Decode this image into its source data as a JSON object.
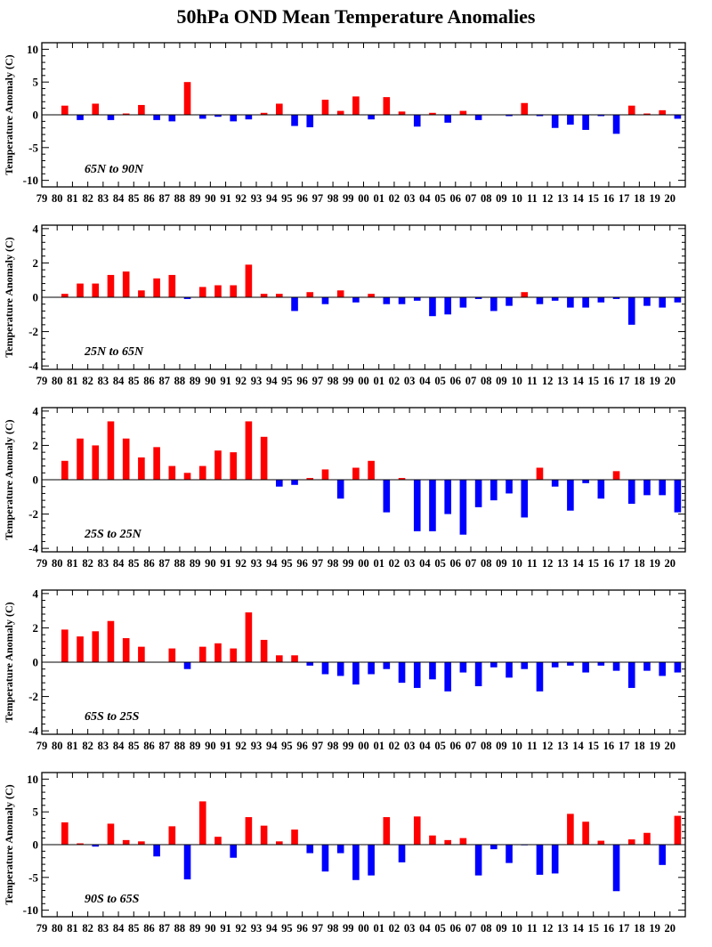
{
  "title": "50hPa OND Mean Temperature Anomalies",
  "colors": {
    "positive": "#ff0000",
    "negative": "#0000ff"
  },
  "chart_data": [
    {
      "type": "bar",
      "region": "65N to 90N",
      "ylabel": "Temperature Anomaly (C)",
      "ylim": [
        -11,
        11
      ],
      "yticks": [
        -10,
        -5,
        0,
        5,
        10
      ],
      "categories": [
        "79",
        "80",
        "81",
        "82",
        "83",
        "84",
        "85",
        "86",
        "87",
        "88",
        "89",
        "90",
        "91",
        "92",
        "93",
        "94",
        "95",
        "96",
        "97",
        "98",
        "99",
        "00",
        "01",
        "02",
        "03",
        "04",
        "05",
        "06",
        "07",
        "08",
        "09",
        "10",
        "11",
        "12",
        "13",
        "14",
        "15",
        "16",
        "17",
        "18",
        "19",
        "20"
      ],
      "values": [
        0,
        1.4,
        -0.8,
        1.7,
        -0.8,
        0.2,
        1.5,
        -0.8,
        -1.0,
        5.0,
        -0.6,
        -0.3,
        -1.0,
        -0.7,
        0.3,
        1.7,
        -1.7,
        -1.9,
        2.3,
        0.6,
        2.8,
        -0.7,
        2.7,
        0.5,
        -1.8,
        0.3,
        -1.2,
        0.6,
        -0.8,
        0,
        -0.2,
        1.8,
        -0.2,
        -2.0,
        -1.5,
        -2.3,
        -0.2,
        -2.9,
        1.4,
        0.2,
        0.7,
        -0.6
      ]
    },
    {
      "type": "bar",
      "region": "25N to 65N",
      "ylabel": "Temperature Anomaly (C)",
      "ylim": [
        -4.2,
        4.2
      ],
      "yticks": [
        -4,
        -2,
        0,
        2,
        4
      ],
      "categories": [
        "79",
        "80",
        "81",
        "82",
        "83",
        "84",
        "85",
        "86",
        "87",
        "88",
        "89",
        "90",
        "91",
        "92",
        "93",
        "94",
        "95",
        "96",
        "97",
        "98",
        "99",
        "00",
        "01",
        "02",
        "03",
        "04",
        "05",
        "06",
        "07",
        "08",
        "09",
        "10",
        "11",
        "12",
        "13",
        "14",
        "15",
        "16",
        "17",
        "18",
        "19",
        "20"
      ],
      "values": [
        0,
        0.2,
        0.8,
        0.8,
        1.3,
        1.5,
        0.4,
        1.1,
        1.3,
        -0.1,
        0.6,
        0.7,
        0.7,
        1.9,
        0.2,
        0.2,
        -0.8,
        0.3,
        -0.4,
        0.4,
        -0.3,
        0.2,
        -0.4,
        -0.4,
        -0.2,
        -1.1,
        -1.0,
        -0.6,
        -0.1,
        -0.8,
        -0.5,
        0.3,
        -0.4,
        -0.2,
        -0.6,
        -0.6,
        -0.3,
        -0.1,
        -1.6,
        -0.5,
        -0.6,
        -0.3
      ]
    },
    {
      "type": "bar",
      "region": "25S to 25N",
      "ylabel": "Temperature Anomaly (C)",
      "ylim": [
        -4.2,
        4.2
      ],
      "yticks": [
        -4,
        -2,
        0,
        2,
        4
      ],
      "categories": [
        "79",
        "80",
        "81",
        "82",
        "83",
        "84",
        "85",
        "86",
        "87",
        "88",
        "89",
        "90",
        "91",
        "92",
        "93",
        "94",
        "95",
        "96",
        "97",
        "98",
        "99",
        "00",
        "01",
        "02",
        "03",
        "04",
        "05",
        "06",
        "07",
        "08",
        "09",
        "10",
        "11",
        "12",
        "13",
        "14",
        "15",
        "16",
        "17",
        "18",
        "19",
        "20"
      ],
      "values": [
        0,
        1.1,
        2.4,
        2.0,
        3.4,
        2.4,
        1.3,
        1.9,
        0.8,
        0.4,
        0.8,
        1.7,
        1.6,
        3.4,
        2.5,
        -0.4,
        -0.3,
        0.1,
        0.6,
        -1.1,
        0.7,
        1.1,
        -1.9,
        0.1,
        -3.0,
        -3.0,
        -2.0,
        -3.2,
        -1.6,
        -1.2,
        -0.8,
        -2.2,
        0.7,
        -0.4,
        -1.8,
        -0.2,
        -1.1,
        0.5,
        -1.4,
        -0.9,
        -0.9,
        -1.9
      ]
    },
    {
      "type": "bar",
      "region": "65S to 25S",
      "ylabel": "Temperature Anomaly (C)",
      "ylim": [
        -4.2,
        4.2
      ],
      "yticks": [
        -4,
        -2,
        0,
        2,
        4
      ],
      "categories": [
        "79",
        "80",
        "81",
        "82",
        "83",
        "84",
        "85",
        "86",
        "87",
        "88",
        "89",
        "90",
        "91",
        "92",
        "93",
        "94",
        "95",
        "96",
        "97",
        "98",
        "99",
        "00",
        "01",
        "02",
        "03",
        "04",
        "05",
        "06",
        "07",
        "08",
        "09",
        "10",
        "11",
        "12",
        "13",
        "14",
        "15",
        "16",
        "17",
        "18",
        "19",
        "20"
      ],
      "values": [
        0,
        1.9,
        1.5,
        1.8,
        2.4,
        1.4,
        0.9,
        0,
        0.8,
        -0.4,
        0.9,
        1.1,
        0.8,
        2.9,
        1.3,
        0.4,
        0.4,
        -0.2,
        -0.7,
        -0.8,
        -1.3,
        -0.7,
        -0.4,
        -1.2,
        -1.5,
        -1.0,
        -1.7,
        -0.6,
        -1.4,
        -0.3,
        -0.9,
        -0.4,
        -1.7,
        -0.3,
        -0.2,
        -0.6,
        -0.2,
        -0.5,
        -1.5,
        -0.5,
        -0.8,
        -0.6
      ]
    },
    {
      "type": "bar",
      "region": "90S to 65S",
      "ylabel": "Temperature Anomaly (C)",
      "ylim": [
        -11,
        11
      ],
      "yticks": [
        -10,
        -5,
        0,
        5,
        10
      ],
      "categories": [
        "79",
        "80",
        "81",
        "82",
        "83",
        "84",
        "85",
        "86",
        "87",
        "88",
        "89",
        "90",
        "91",
        "92",
        "93",
        "94",
        "95",
        "96",
        "97",
        "98",
        "99",
        "00",
        "01",
        "02",
        "03",
        "04",
        "05",
        "06",
        "07",
        "08",
        "09",
        "10",
        "11",
        "12",
        "13",
        "14",
        "15",
        "16",
        "17",
        "18",
        "19",
        "20"
      ],
      "values": [
        0,
        3.4,
        0.2,
        -0.3,
        3.2,
        0.7,
        0.5,
        -1.8,
        2.8,
        -5.3,
        6.6,
        1.2,
        -2.0,
        4.2,
        2.9,
        0.5,
        2.3,
        -1.3,
        -4.1,
        -1.3,
        -5.4,
        -4.7,
        4.2,
        -2.7,
        4.3,
        1.4,
        0.7,
        1.0,
        -4.7,
        -0.7,
        -2.8,
        -0.1,
        -4.6,
        -4.4,
        4.7,
        3.5,
        0.6,
        -7.1,
        0.8,
        1.8,
        -3.1,
        4.4
      ]
    }
  ]
}
